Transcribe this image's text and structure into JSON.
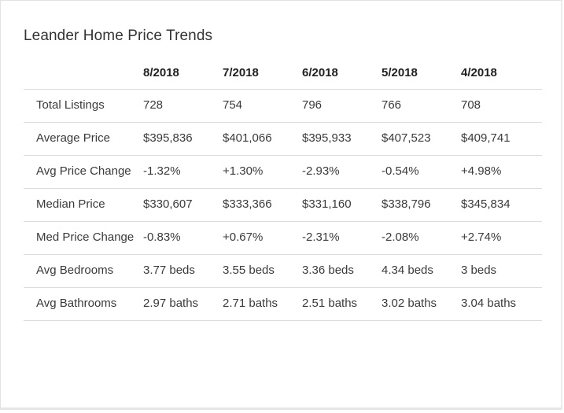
{
  "card": {
    "title": "Leander Home Price Trends"
  },
  "table": {
    "columns": [
      "8/2018",
      "7/2018",
      "6/2018",
      "5/2018",
      "4/2018"
    ],
    "rows": [
      {
        "label": "Total Listings",
        "values": [
          "728",
          "754",
          "796",
          "766",
          "708"
        ]
      },
      {
        "label": "Average Price",
        "values": [
          "$395,836",
          "$401,066",
          "$395,933",
          "$407,523",
          "$409,741"
        ]
      },
      {
        "label": "Avg Price Change",
        "values": [
          "-1.32%",
          "+1.30%",
          "-2.93%",
          "-0.54%",
          "+4.98%"
        ]
      },
      {
        "label": "Median Price",
        "values": [
          "$330,607",
          "$333,366",
          "$331,160",
          "$338,796",
          "$345,834"
        ]
      },
      {
        "label": "Med Price Change",
        "values": [
          "-0.83%",
          "+0.67%",
          "-2.31%",
          "-2.08%",
          "+2.74%"
        ]
      },
      {
        "label": "Avg Bedrooms",
        "values": [
          "3.77 beds",
          "3.55 beds",
          "3.36 beds",
          "4.34 beds",
          "3 beds"
        ]
      },
      {
        "label": "Avg Bathrooms",
        "values": [
          "2.97 baths",
          "2.71 baths",
          "2.51 baths",
          "3.02 baths",
          "3.04 baths"
        ]
      }
    ]
  }
}
